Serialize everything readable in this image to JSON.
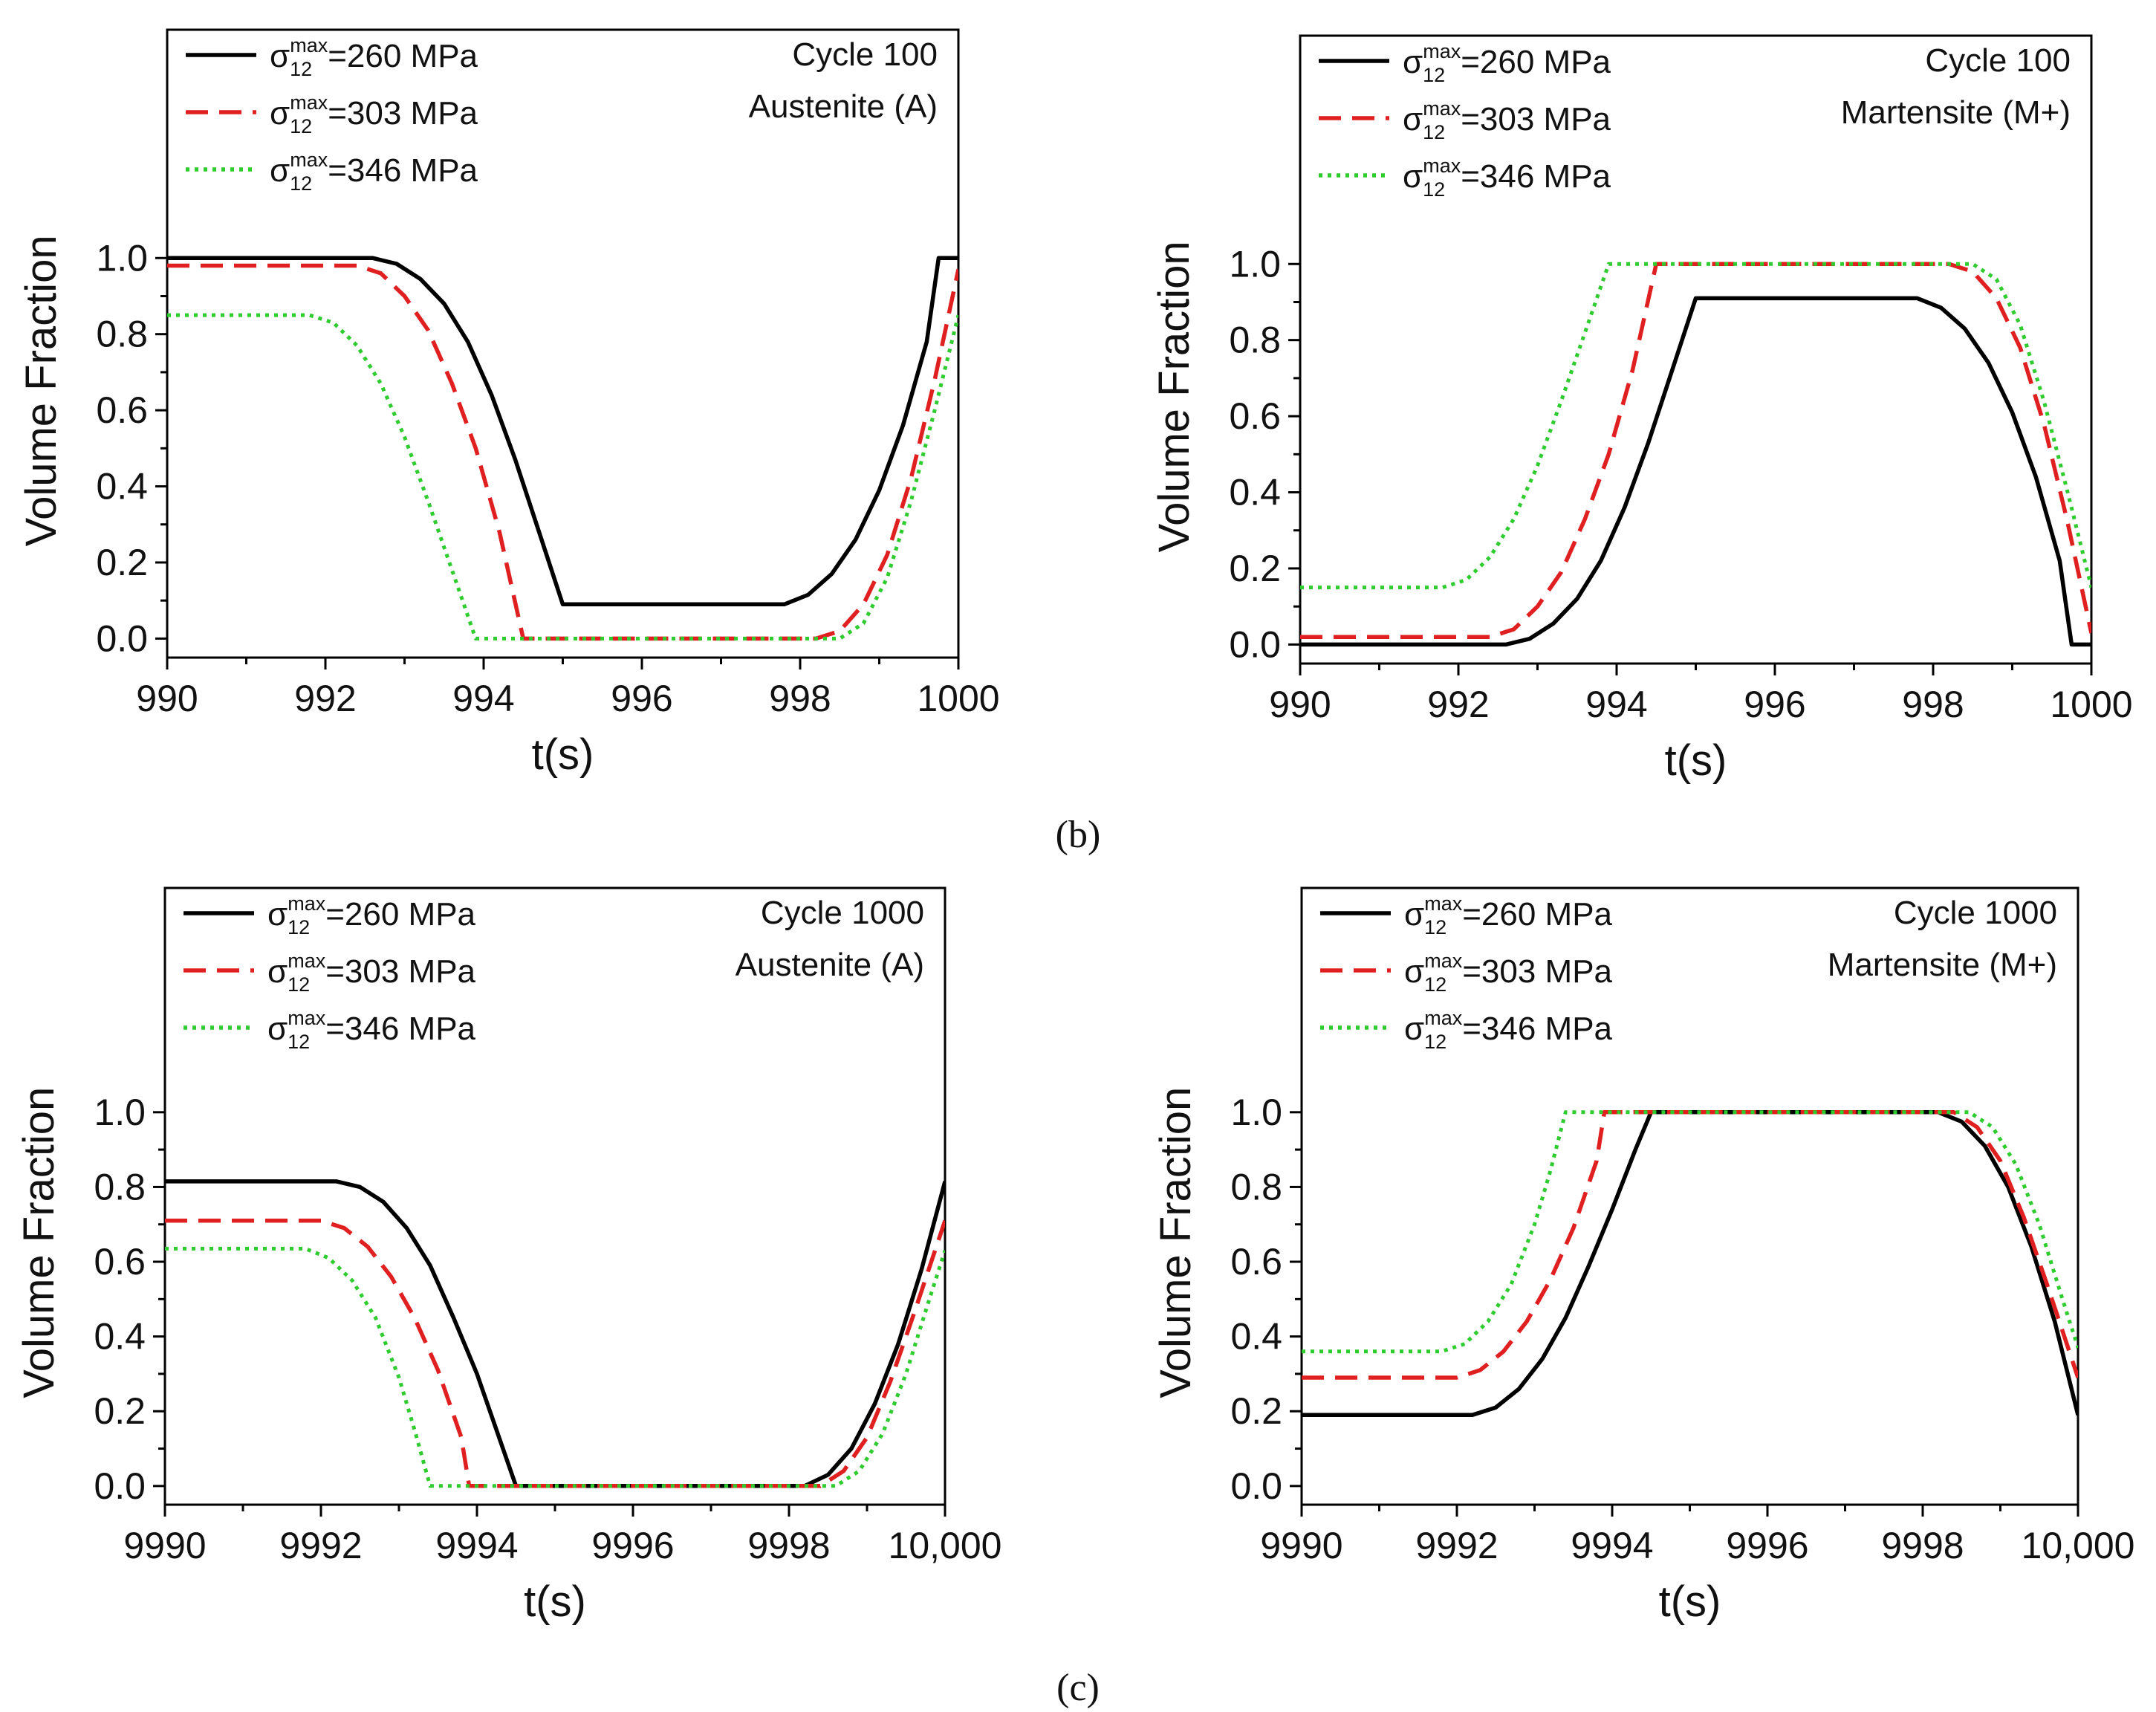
{
  "panel_labels": [
    "(b)",
    "(c)"
  ],
  "chart_data": [
    {
      "type": "line",
      "panel": "b-left",
      "title": "",
      "annotations": [
        "Cycle 100",
        "Austenite (A)"
      ],
      "xlabel": "t(s)",
      "ylabel": "Volume Fraction",
      "xlim": [
        990,
        1000
      ],
      "ylim": [
        -0.05,
        1.6
      ],
      "xticks": [
        990,
        992,
        994,
        996,
        998,
        1000
      ],
      "xtick_labels": [
        "990",
        "992",
        "994",
        "996",
        "998",
        "1000"
      ],
      "yticks": [
        0.0,
        0.2,
        0.4,
        0.6,
        0.8,
        1.0
      ],
      "ytick_labels": [
        "0.0",
        "0.2",
        "0.4",
        "0.6",
        "0.8",
        "1.0"
      ],
      "legend_position": "top-left",
      "series": [
        {
          "name": "σ12max=260 MPa",
          "sigma": "σ",
          "sub": "12",
          "sup": "max",
          "value": "=260 MPa",
          "color": "#000000",
          "dash": "solid",
          "x": [
            990,
            992.6,
            992.9,
            993.2,
            993.5,
            993.8,
            994.1,
            994.4,
            994.7,
            995.0,
            997.8,
            998.1,
            998.4,
            998.7,
            999.0,
            999.3,
            999.6,
            999.75,
            1000
          ],
          "y": [
            1.0,
            1.0,
            0.985,
            0.945,
            0.88,
            0.78,
            0.64,
            0.47,
            0.28,
            0.09,
            0.09,
            0.115,
            0.17,
            0.26,
            0.39,
            0.56,
            0.78,
            1.0,
            1.0
          ]
        },
        {
          "name": "σ12max=303 MPa",
          "sigma": "σ",
          "sub": "12",
          "sup": "max",
          "value": "=303 MPa",
          "color": "#e02020",
          "dash": "dashed",
          "x": [
            990,
            992.4,
            992.7,
            993.0,
            993.3,
            993.6,
            993.9,
            994.2,
            994.5,
            998.2,
            998.5,
            998.8,
            999.1,
            999.4,
            999.7,
            1000
          ],
          "y": [
            0.98,
            0.98,
            0.96,
            0.9,
            0.81,
            0.67,
            0.5,
            0.28,
            0.0,
            0.0,
            0.02,
            0.09,
            0.22,
            0.42,
            0.68,
            0.97
          ]
        },
        {
          "name": "σ12max=346 MPa",
          "sigma": "σ",
          "sub": "12",
          "sup": "max",
          "value": "=346 MPa",
          "color": "#2ecc2e",
          "dash": "dotted",
          "x": [
            990,
            991.8,
            992.1,
            992.4,
            992.7,
            993.0,
            993.3,
            993.6,
            993.9,
            998.5,
            998.8,
            999.1,
            999.4,
            999.7,
            1000
          ],
          "y": [
            0.85,
            0.85,
            0.83,
            0.77,
            0.67,
            0.53,
            0.36,
            0.18,
            0.0,
            0.0,
            0.04,
            0.16,
            0.36,
            0.6,
            0.85
          ]
        }
      ]
    },
    {
      "type": "line",
      "panel": "b-right",
      "title": "",
      "annotations": [
        "Cycle 100",
        "Martensite (M+)"
      ],
      "xlabel": "t(s)",
      "ylabel": "Volume Fraction",
      "xlim": [
        990,
        1000
      ],
      "ylim": [
        -0.05,
        1.6
      ],
      "xticks": [
        990,
        992,
        994,
        996,
        998,
        1000
      ],
      "xtick_labels": [
        "990",
        "992",
        "994",
        "996",
        "998",
        "1000"
      ],
      "yticks": [
        0.0,
        0.2,
        0.4,
        0.6,
        0.8,
        1.0
      ],
      "ytick_labels": [
        "0.0",
        "0.2",
        "0.4",
        "0.6",
        "0.8",
        "1.0"
      ],
      "legend_position": "top-left",
      "series": [
        {
          "name": "σ12max=260 MPa",
          "sigma": "σ",
          "sub": "12",
          "sup": "max",
          "value": "=260 MPa",
          "color": "#000000",
          "dash": "solid",
          "x": [
            990,
            992.6,
            992.9,
            993.2,
            993.5,
            993.8,
            994.1,
            994.4,
            994.7,
            995.0,
            997.8,
            998.1,
            998.4,
            998.7,
            999.0,
            999.3,
            999.6,
            999.75,
            1000
          ],
          "y": [
            0.0,
            0.0,
            0.015,
            0.055,
            0.12,
            0.22,
            0.36,
            0.53,
            0.72,
            0.91,
            0.91,
            0.885,
            0.83,
            0.74,
            0.61,
            0.44,
            0.22,
            0.0,
            0.0
          ]
        },
        {
          "name": "σ12max=303 MPa",
          "sigma": "σ",
          "sub": "12",
          "sup": "max",
          "value": "=303 MPa",
          "color": "#e02020",
          "dash": "dashed",
          "x": [
            990,
            992.4,
            992.7,
            993.0,
            993.3,
            993.6,
            993.9,
            994.2,
            994.5,
            998.2,
            998.5,
            998.8,
            999.1,
            999.4,
            999.7,
            1000
          ],
          "y": [
            0.02,
            0.02,
            0.04,
            0.1,
            0.19,
            0.33,
            0.5,
            0.72,
            1.0,
            1.0,
            0.98,
            0.91,
            0.78,
            0.58,
            0.32,
            0.03
          ]
        },
        {
          "name": "σ12max=346 MPa",
          "sigma": "σ",
          "sub": "12",
          "sup": "max",
          "value": "=346 MPa",
          "color": "#2ecc2e",
          "dash": "dotted",
          "x": [
            990,
            991.8,
            992.1,
            992.4,
            992.7,
            993.0,
            993.3,
            993.6,
            993.9,
            998.5,
            998.8,
            999.1,
            999.4,
            999.7,
            1000
          ],
          "y": [
            0.15,
            0.15,
            0.17,
            0.23,
            0.33,
            0.47,
            0.64,
            0.82,
            1.0,
            1.0,
            0.96,
            0.84,
            0.64,
            0.4,
            0.15
          ]
        }
      ]
    },
    {
      "type": "line",
      "panel": "c-left",
      "title": "",
      "annotations": [
        "Cycle 1000",
        "Austenite (A)"
      ],
      "xlabel": "t(s)",
      "ylabel": "Volume Fraction",
      "xlim": [
        9990,
        10000
      ],
      "ylim": [
        -0.05,
        1.6
      ],
      "xticks": [
        9990,
        9992,
        9994,
        9996,
        9998,
        10000
      ],
      "xtick_labels": [
        "9990",
        "9992",
        "9994",
        "9996",
        "9998",
        "10,000"
      ],
      "yticks": [
        0.0,
        0.2,
        0.4,
        0.6,
        0.8,
        1.0
      ],
      "ytick_labels": [
        "0.0",
        "0.2",
        "0.4",
        "0.6",
        "0.8",
        "1.0"
      ],
      "legend_position": "top-left",
      "series": [
        {
          "name": "σ12max=260 MPa",
          "sigma": "σ",
          "sub": "12",
          "sup": "max",
          "value": "=260 MPa",
          "color": "#000000",
          "dash": "solid",
          "x": [
            9990,
            9992.2,
            9992.5,
            9992.8,
            9993.1,
            9993.4,
            9993.7,
            9994.0,
            9994.3,
            9994.5,
            9998.2,
            9998.5,
            9998.8,
            9999.1,
            9999.4,
            9999.7,
            10000
          ],
          "y": [
            0.815,
            0.815,
            0.8,
            0.76,
            0.69,
            0.59,
            0.45,
            0.3,
            0.12,
            0.0,
            0.0,
            0.03,
            0.1,
            0.22,
            0.38,
            0.58,
            0.815
          ]
        },
        {
          "name": "σ12max=303 MPa",
          "sigma": "σ",
          "sub": "12",
          "sup": "max",
          "value": "=303 MPa",
          "color": "#e02020",
          "dash": "dashed",
          "x": [
            9990,
            9992.0,
            9992.3,
            9992.6,
            9992.9,
            9993.2,
            9993.5,
            9993.8,
            9993.9,
            9998.4,
            9998.7,
            9999.0,
            9999.3,
            9999.6,
            10000
          ],
          "y": [
            0.71,
            0.71,
            0.69,
            0.64,
            0.56,
            0.45,
            0.31,
            0.13,
            0.0,
            0.0,
            0.04,
            0.13,
            0.28,
            0.46,
            0.71
          ]
        },
        {
          "name": "σ12max=346 MPa",
          "sigma": "σ",
          "sub": "12",
          "sup": "max",
          "value": "=346 MPa",
          "color": "#2ecc2e",
          "dash": "dotted",
          "x": [
            9990,
            9991.8,
            9992.1,
            9992.4,
            9992.7,
            9993.0,
            9993.2,
            9993.4,
            9998.6,
            9998.9,
            9999.2,
            9999.5,
            9999.8,
            10000
          ],
          "y": [
            0.635,
            0.635,
            0.61,
            0.55,
            0.45,
            0.29,
            0.15,
            0.0,
            0.0,
            0.04,
            0.14,
            0.3,
            0.5,
            0.63
          ]
        }
      ]
    },
    {
      "type": "line",
      "panel": "c-right",
      "title": "",
      "annotations": [
        "Cycle 1000",
        "Martensite (M+)"
      ],
      "xlabel": "t(s)",
      "ylabel": "Volume Fraction",
      "xlim": [
        9990,
        10000
      ],
      "ylim": [
        -0.05,
        1.6
      ],
      "xticks": [
        9990,
        9992,
        9994,
        9996,
        9998,
        10000
      ],
      "xtick_labels": [
        "9990",
        "9992",
        "9994",
        "9996",
        "9998",
        "10,000"
      ],
      "yticks": [
        0.0,
        0.2,
        0.4,
        0.6,
        0.8,
        1.0
      ],
      "ytick_labels": [
        "0.0",
        "0.2",
        "0.4",
        "0.6",
        "0.8",
        "1.0"
      ],
      "legend_position": "top-left",
      "series": [
        {
          "name": "σ12max=260 MPa",
          "sigma": "σ",
          "sub": "12",
          "sup": "max",
          "value": "=260 MPa",
          "color": "#000000",
          "dash": "solid",
          "x": [
            9990,
            9992.2,
            9992.5,
            9992.8,
            9993.1,
            9993.4,
            9993.7,
            9994.0,
            9994.3,
            9994.5,
            9998.2,
            9998.5,
            9998.8,
            9999.1,
            9999.4,
            9999.7,
            10000
          ],
          "y": [
            0.19,
            0.19,
            0.21,
            0.26,
            0.34,
            0.45,
            0.59,
            0.74,
            0.9,
            1.0,
            1.0,
            0.975,
            0.91,
            0.8,
            0.64,
            0.44,
            0.19
          ]
        },
        {
          "name": "σ12max=303 MPa",
          "sigma": "σ",
          "sub": "12",
          "sup": "max",
          "value": "=303 MPa",
          "color": "#e02020",
          "dash": "dashed",
          "x": [
            9990,
            9992.0,
            9992.3,
            9992.6,
            9992.9,
            9993.2,
            9993.5,
            9993.8,
            9993.9,
            9998.4,
            9998.7,
            9999.0,
            9999.3,
            9999.6,
            10000
          ],
          "y": [
            0.29,
            0.29,
            0.31,
            0.36,
            0.44,
            0.55,
            0.69,
            0.87,
            1.0,
            1.0,
            0.96,
            0.87,
            0.72,
            0.54,
            0.29
          ]
        },
        {
          "name": "σ12max=346 MPa",
          "sigma": "σ",
          "sub": "12",
          "sup": "max",
          "value": "=346 MPa",
          "color": "#2ecc2e",
          "dash": "dotted",
          "x": [
            9990,
            9991.8,
            9992.1,
            9992.4,
            9992.7,
            9993.0,
            9993.2,
            9993.4,
            9998.6,
            9998.9,
            9999.2,
            9999.5,
            9999.8,
            10000
          ],
          "y": [
            0.36,
            0.36,
            0.38,
            0.44,
            0.54,
            0.7,
            0.84,
            1.0,
            1.0,
            0.96,
            0.86,
            0.7,
            0.5,
            0.37
          ]
        }
      ]
    }
  ]
}
